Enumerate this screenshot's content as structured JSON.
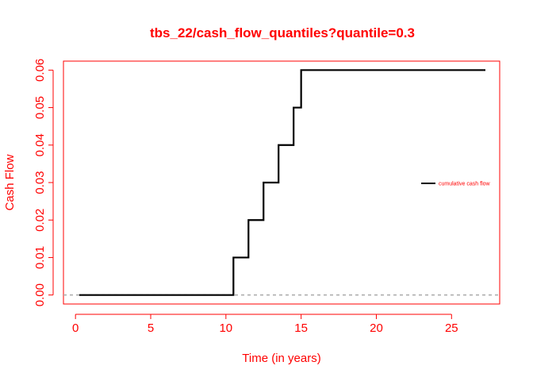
{
  "colors": {
    "accent": "#ff0000",
    "line": "#000000",
    "baseline": "#aaaaaa",
    "background": "#ffffff"
  },
  "chart_data": {
    "type": "line",
    "title": "tbs_22/cash_flow_quantiles?quantile=0.3",
    "xlabel": "Time (in years)",
    "ylabel": "Cash Flow",
    "xlim": [
      -0.8,
      28.2
    ],
    "ylim": [
      -0.0024,
      0.0624
    ],
    "x_ticks": [
      0,
      5,
      10,
      15,
      20,
      25
    ],
    "x_tick_labels": [
      "0",
      "5",
      "10",
      "15",
      "20",
      "25"
    ],
    "y_ticks": [
      0.0,
      0.01,
      0.02,
      0.03,
      0.04,
      0.05,
      0.06
    ],
    "y_tick_labels": [
      "0.00",
      "0.01",
      "0.02",
      "0.03",
      "0.04",
      "0.05",
      "0.06"
    ],
    "grid": false,
    "legend_position": "right",
    "series": [
      {
        "name": "cumulative cash flow",
        "step": true,
        "x": [
          0.25,
          10.0,
          10.5,
          11.0,
          11.5,
          12.0,
          12.5,
          13.0,
          13.5,
          14.0,
          14.5,
          15.0,
          27.25
        ],
        "y": [
          0.0,
          0.0,
          0.01,
          0.01,
          0.02,
          0.02,
          0.03,
          0.03,
          0.04,
          0.04,
          0.05,
          0.06,
          0.06
        ]
      }
    ],
    "reference_lines": [
      {
        "axis": "y",
        "value": 0.0,
        "style": "dashed"
      }
    ]
  }
}
